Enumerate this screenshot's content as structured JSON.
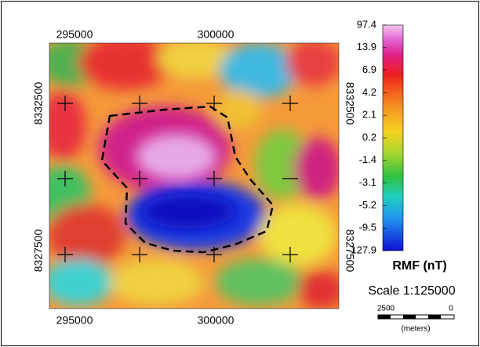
{
  "map": {
    "top_labels": [
      "295000",
      "300000"
    ],
    "bottom_labels": [
      "295000",
      "300000"
    ],
    "left_labels": [
      "8332500",
      "8327500"
    ],
    "right_labels": [
      "8332500",
      "8327500"
    ],
    "colorbar": {
      "labels": [
        "97.4",
        "13.9",
        "6.9",
        "4.2",
        "2.1",
        "0.2",
        "-1.4",
        "-3.1",
        "-5.2",
        "-9.5",
        "-127.9"
      ],
      "title": "RMF (nT)"
    },
    "scale": {
      "title": "Scale 1:125000",
      "left_label": "2500",
      "right_label": "0",
      "unit": "(meters)"
    }
  }
}
